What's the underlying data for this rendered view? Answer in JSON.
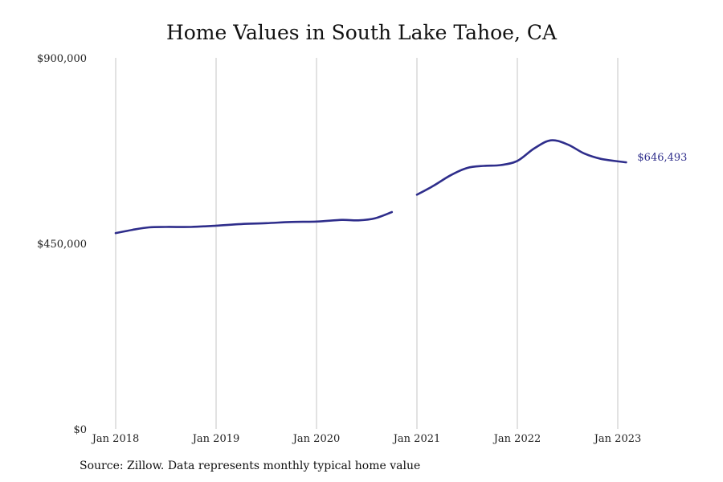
{
  "title": "Home Values in South Lake Tahoe, CA",
  "source": "Source: Zillow. Data represents monthly typical home value",
  "colors": {
    "line": "#2e2d8b",
    "grid": "#c4c4c4"
  },
  "chart_data": {
    "type": "line",
    "title": "Home Values in South Lake Tahoe, CA",
    "xlabel": "",
    "ylabel": "",
    "x_ticks": [
      "Jan 2018",
      "Jan 2019",
      "Jan 2020",
      "Jan 2021",
      "Jan 2022",
      "Jan 2023"
    ],
    "y_ticks": [
      {
        "value": 0,
        "label": "$0"
      },
      {
        "value": 450000,
        "label": "$450,000"
      },
      {
        "value": 900000,
        "label": "$900,000"
      }
    ],
    "ylim": [
      0,
      900000
    ],
    "xlim": [
      "2018-01",
      "2023-08"
    ],
    "grid": "vertical",
    "end_label": "$646,493",
    "series": [
      {
        "segments": [
          [
            {
              "date": "2018-01",
              "value": 475000
            },
            {
              "date": "2018-03",
              "value": 483000
            },
            {
              "date": "2018-05",
              "value": 489000
            },
            {
              "date": "2018-07",
              "value": 490000
            },
            {
              "date": "2018-10",
              "value": 490000
            },
            {
              "date": "2019-01",
              "value": 493000
            },
            {
              "date": "2019-04",
              "value": 497000
            },
            {
              "date": "2019-07",
              "value": 499000
            },
            {
              "date": "2019-10",
              "value": 502000
            },
            {
              "date": "2020-01",
              "value": 503000
            },
            {
              "date": "2020-04",
              "value": 507000
            },
            {
              "date": "2020-06",
              "value": 506000
            },
            {
              "date": "2020-08",
              "value": 511000
            },
            {
              "date": "2020-10",
              "value": 526000
            }
          ],
          [
            {
              "date": "2021-01",
              "value": 568000
            },
            {
              "date": "2021-03",
              "value": 590000
            },
            {
              "date": "2021-05",
              "value": 615000
            },
            {
              "date": "2021-07",
              "value": 633000
            },
            {
              "date": "2021-09",
              "value": 638000
            },
            {
              "date": "2021-11",
              "value": 640000
            },
            {
              "date": "2022-01",
              "value": 650000
            },
            {
              "date": "2022-03",
              "value": 680000
            },
            {
              "date": "2022-05",
              "value": 700000
            },
            {
              "date": "2022-07",
              "value": 690000
            },
            {
              "date": "2022-09",
              "value": 668000
            },
            {
              "date": "2022-11",
              "value": 655000
            },
            {
              "date": "2023-02",
              "value": 646493
            }
          ]
        ]
      }
    ]
  }
}
